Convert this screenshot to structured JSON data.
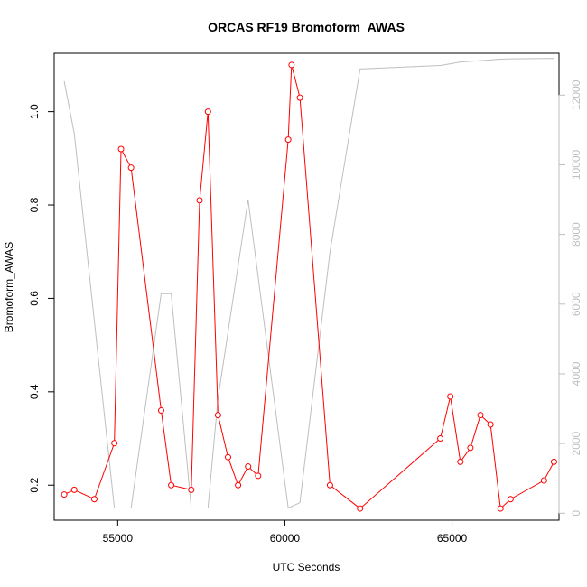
{
  "chart_data": {
    "type": "line",
    "title": "ORCAS RF19 Bromoform_AWAS",
    "xlabel": "UTC Seconds",
    "ylabel": "Bromoform_AWAS",
    "xlim": [
      53100,
      68200
    ],
    "ylim": [
      0.125,
      1.125
    ],
    "y2lim": [
      -200,
      13200
    ],
    "x_ticks": [
      55000,
      60000,
      65000
    ],
    "y_ticks": [
      0.2,
      0.4,
      0.6,
      0.8,
      1.0
    ],
    "y_tick_labels": [
      "0.2",
      "0.4",
      "0.6",
      "0.8",
      "1.0"
    ],
    "y2_ticks": [
      0,
      2000,
      4000,
      6000,
      8000,
      10000,
      12000
    ],
    "grid": false,
    "colors": {
      "primary": "#ff0000",
      "secondary": "#bebebe",
      "axis": "#000000"
    },
    "series": [
      {
        "axis": "left",
        "style": "line+points",
        "color": "#ff0000",
        "x": [
          53400,
          53700,
          54300,
          54900,
          55100,
          55400,
          56300,
          56600,
          57200,
          57450,
          57700,
          58000,
          58300,
          58600,
          58900,
          59200,
          60100,
          60200,
          60450,
          61350,
          62250,
          64650,
          64950,
          65250,
          65550,
          65850,
          66150,
          66450,
          66750,
          67750,
          68050
        ],
        "y": [
          0.18,
          0.19,
          0.17,
          0.29,
          0.92,
          0.88,
          0.36,
          0.2,
          0.19,
          0.81,
          1.0,
          0.35,
          0.26,
          0.2,
          0.24,
          0.22,
          0.94,
          1.1,
          1.03,
          0.2,
          0.15,
          0.3,
          0.39,
          0.25,
          0.28,
          0.35,
          0.33,
          0.15,
          0.17,
          0.21,
          0.25
        ]
      },
      {
        "axis": "right",
        "style": "line",
        "color": "#bebebe",
        "x": [
          53400,
          53700,
          54900,
          55100,
          55400,
          56300,
          56600,
          57200,
          57450,
          57700,
          58000,
          58900,
          60100,
          60450,
          61350,
          62250,
          64650,
          64950,
          65250,
          65550,
          65850,
          66150,
          66450,
          66750,
          67750,
          68050
        ],
        "y": [
          12400,
          10900,
          150,
          150,
          150,
          6300,
          6300,
          150,
          150,
          150,
          3300,
          9000,
          150,
          300,
          7500,
          12750,
          12850,
          12900,
          12950,
          12970,
          12990,
          13010,
          13030,
          13040,
          13050,
          13050
        ]
      }
    ]
  }
}
